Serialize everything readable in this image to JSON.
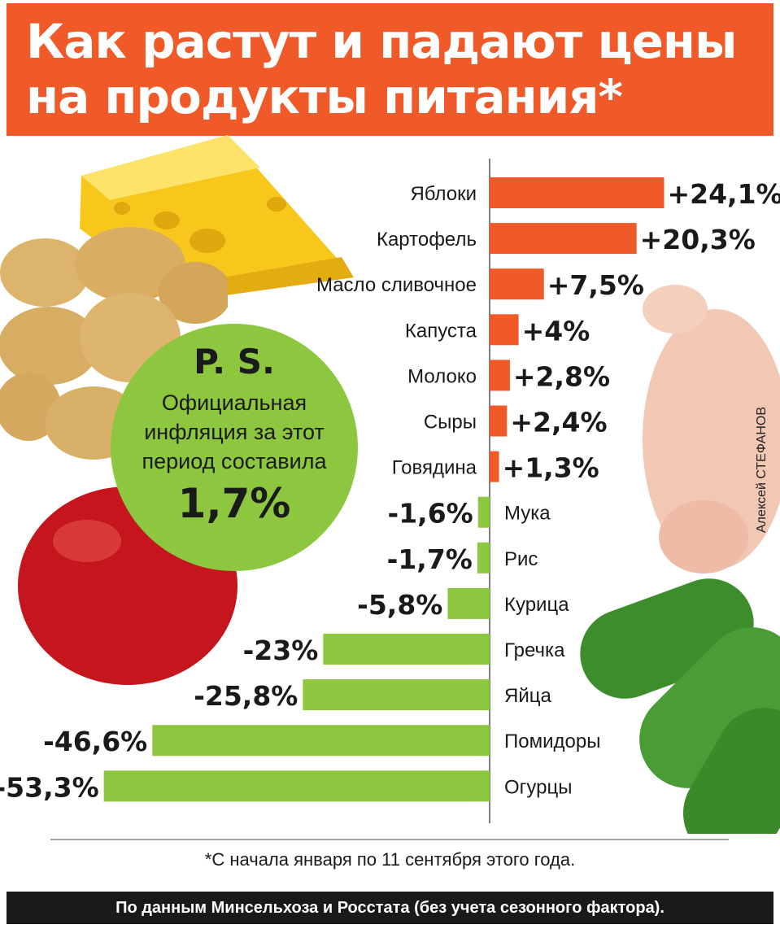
{
  "header": {
    "line1": "Как растут и падают цены",
    "line2": "на продукты питания*"
  },
  "ps": {
    "title": "P. S.",
    "line1": "Официальная",
    "line2": "инфляция за этот",
    "line3": "период составила",
    "value": "1,7%"
  },
  "credit": "Алексей СТЕФАНОВ",
  "footnote": "*С начала января по 11 сентября этого года.",
  "source": "По данным Минсельхоза и Росстата (без учета сезонного фактора).",
  "colors": {
    "header": "#ef5a28",
    "increase": "#ef5a28",
    "decrease": "#8dc63f",
    "text": "#1a1a1a"
  },
  "decor_icons": [
    "cheese",
    "potatoes",
    "apple",
    "chicken",
    "cucumbers"
  ],
  "chart_data": {
    "type": "bar",
    "orientation": "horizontal",
    "unit": "%",
    "categories": [
      "Яблоки",
      "Картофель",
      "Масло сливочное",
      "Капуста",
      "Молоко",
      "Сыры",
      "Говядина",
      "Мука",
      "Рис",
      "Курица",
      "Гречка",
      "Яйца",
      "Помидоры",
      "Огурцы"
    ],
    "values": [
      24.1,
      20.3,
      7.5,
      4,
      2.8,
      2.4,
      1.3,
      -1.6,
      -1.7,
      -5.8,
      -23,
      -25.8,
      -46.6,
      -53.3
    ],
    "labels": [
      "+24,1%",
      "+20,3%",
      "+7,5%",
      "+4%",
      "+2,8%",
      "+2,4%",
      "+1,3%",
      "-1,6%",
      "-1,7%",
      "-5,8%",
      "-23%",
      "-25,8%",
      "-46,6%",
      "-53,3%"
    ]
  }
}
